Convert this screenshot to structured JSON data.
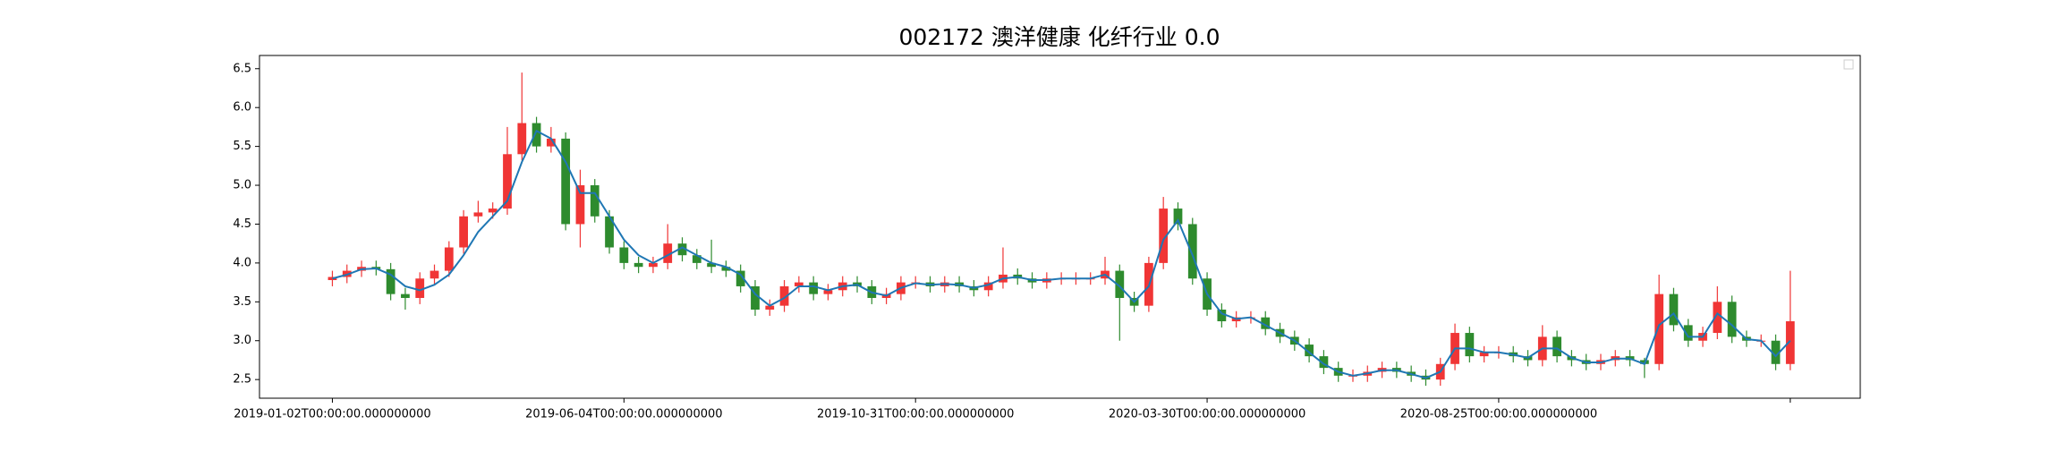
{
  "chart_data": {
    "type": "candlestick",
    "title": "002172 澳洋健康 化纤行业 0.0",
    "x": [
      0,
      5,
      10,
      15,
      20,
      25,
      30,
      35,
      40,
      45,
      50,
      55,
      60,
      65,
      70,
      75,
      80,
      85,
      90,
      95,
      100,
      105,
      110,
      115,
      120,
      125,
      130,
      135,
      140,
      145,
      150,
      155,
      160,
      165,
      170,
      175,
      180,
      185,
      190,
      195,
      200,
      205,
      210,
      215,
      220,
      225,
      230,
      235,
      240,
      245,
      250,
      255,
      260,
      265,
      270,
      275,
      280,
      285,
      290,
      295,
      300,
      305,
      310,
      315,
      320,
      325,
      330,
      335,
      340,
      345,
      350,
      355,
      360,
      365,
      370,
      375,
      380,
      385,
      390,
      395,
      400,
      405,
      410,
      415,
      420,
      425,
      430,
      435,
      440,
      445,
      450,
      455,
      460,
      465,
      470,
      475,
      480,
      485,
      490,
      495,
      500
    ],
    "open": [
      3.78,
      3.82,
      3.9,
      3.95,
      3.92,
      3.6,
      3.55,
      3.8,
      3.9,
      4.2,
      4.6,
      4.65,
      4.7,
      5.4,
      5.8,
      5.5,
      5.6,
      4.5,
      5.0,
      4.6,
      4.2,
      4.0,
      3.95,
      4.0,
      4.25,
      4.1,
      4.0,
      3.95,
      3.9,
      3.7,
      3.4,
      3.45,
      3.7,
      3.75,
      3.6,
      3.65,
      3.75,
      3.7,
      3.55,
      3.6,
      3.75,
      3.75,
      3.7,
      3.75,
      3.7,
      3.65,
      3.75,
      3.85,
      3.8,
      3.75,
      3.8,
      3.8,
      3.8,
      3.8,
      3.9,
      3.55,
      3.45,
      4.0,
      4.7,
      4.5,
      3.8,
      3.4,
      3.25,
      3.3,
      3.3,
      3.15,
      3.05,
      2.95,
      2.8,
      2.65,
      2.55,
      2.55,
      2.6,
      2.65,
      2.6,
      2.55,
      2.5,
      2.7,
      3.1,
      2.8,
      2.85,
      2.85,
      2.8,
      2.75,
      3.05,
      2.8,
      2.75,
      2.7,
      2.75,
      2.8,
      2.75,
      2.7,
      3.6,
      3.2,
      3.0,
      3.1,
      3.5,
      3.05,
      3.0,
      3.0,
      2.7
    ],
    "high": [
      3.9,
      3.98,
      4.03,
      4.03,
      4.0,
      3.68,
      3.88,
      3.98,
      4.28,
      4.68,
      4.8,
      4.78,
      5.75,
      6.45,
      5.88,
      5.75,
      5.68,
      5.2,
      5.08,
      4.68,
      4.28,
      4.08,
      4.08,
      4.5,
      4.33,
      4.18,
      4.3,
      4.03,
      3.98,
      3.78,
      3.53,
      3.78,
      3.83,
      3.83,
      3.73,
      3.83,
      3.83,
      3.78,
      3.68,
      3.83,
      3.83,
      3.83,
      3.83,
      3.83,
      3.78,
      3.83,
      4.2,
      3.93,
      3.88,
      3.88,
      3.88,
      3.88,
      3.88,
      4.08,
      3.98,
      3.63,
      4.08,
      4.85,
      4.78,
      4.58,
      3.88,
      3.48,
      3.38,
      3.38,
      3.38,
      3.23,
      3.13,
      3.03,
      2.88,
      2.73,
      2.63,
      2.68,
      2.73,
      2.73,
      2.68,
      2.63,
      2.78,
      3.22,
      3.18,
      2.93,
      2.93,
      2.93,
      2.88,
      3.2,
      3.13,
      2.88,
      2.83,
      2.83,
      2.88,
      2.88,
      2.78,
      3.85,
      3.68,
      3.28,
      3.18,
      3.7,
      3.58,
      3.13,
      3.08,
      3.08,
      3.9
    ],
    "low": [
      3.7,
      3.74,
      3.82,
      3.84,
      3.52,
      3.4,
      3.47,
      3.72,
      3.82,
      4.12,
      4.52,
      4.57,
      4.62,
      5.32,
      5.42,
      5.42,
      4.42,
      4.2,
      4.52,
      4.12,
      3.92,
      3.87,
      3.87,
      3.92,
      4.02,
      3.92,
      3.87,
      3.82,
      3.62,
      3.32,
      3.32,
      3.37,
      3.62,
      3.52,
      3.52,
      3.57,
      3.62,
      3.47,
      3.47,
      3.52,
      3.67,
      3.62,
      3.62,
      3.62,
      3.57,
      3.57,
      3.67,
      3.72,
      3.67,
      3.67,
      3.72,
      3.72,
      3.72,
      3.72,
      3.0,
      3.37,
      3.37,
      3.92,
      4.42,
      3.72,
      3.32,
      3.17,
      3.17,
      3.22,
      3.07,
      2.97,
      2.87,
      2.72,
      2.57,
      2.47,
      2.47,
      2.47,
      2.52,
      2.52,
      2.47,
      2.42,
      2.42,
      2.62,
      2.72,
      2.72,
      2.77,
      2.72,
      2.67,
      2.67,
      2.72,
      2.67,
      2.62,
      2.62,
      2.67,
      2.67,
      2.52,
      2.62,
      3.12,
      2.92,
      2.92,
      3.02,
      2.97,
      2.92,
      2.92,
      2.62,
      2.62
    ],
    "close": [
      3.82,
      3.9,
      3.95,
      3.92,
      3.6,
      3.55,
      3.8,
      3.9,
      4.2,
      4.6,
      4.65,
      4.7,
      5.4,
      5.8,
      5.5,
      5.6,
      4.5,
      5.0,
      4.6,
      4.2,
      4.0,
      3.95,
      4.0,
      4.25,
      4.1,
      4.0,
      3.95,
      3.9,
      3.7,
      3.4,
      3.45,
      3.7,
      3.75,
      3.6,
      3.65,
      3.75,
      3.7,
      3.55,
      3.6,
      3.75,
      3.75,
      3.7,
      3.75,
      3.7,
      3.65,
      3.75,
      3.85,
      3.8,
      3.75,
      3.8,
      3.8,
      3.8,
      3.8,
      3.9,
      3.55,
      3.45,
      4.0,
      4.7,
      4.5,
      3.8,
      3.4,
      3.25,
      3.3,
      3.3,
      3.15,
      3.05,
      2.95,
      2.8,
      2.65,
      2.55,
      2.55,
      2.6,
      2.65,
      2.6,
      2.55,
      2.5,
      2.7,
      3.1,
      2.8,
      2.85,
      2.85,
      2.8,
      2.75,
      3.05,
      2.8,
      2.75,
      2.7,
      2.75,
      2.8,
      2.75,
      2.7,
      3.6,
      3.2,
      3.0,
      3.1,
      3.5,
      3.05,
      3.0,
      3.0,
      2.7,
      3.25
    ],
    "up_color": "#f03535",
    "down_color": "#2e8b2e",
    "ma": {
      "color": "#1f77b4",
      "values": [
        3.8,
        3.85,
        3.92,
        3.93,
        3.85,
        3.7,
        3.65,
        3.72,
        3.85,
        4.1,
        4.4,
        4.6,
        4.8,
        5.3,
        5.7,
        5.6,
        5.3,
        4.9,
        4.9,
        4.6,
        4.3,
        4.1,
        4.0,
        4.1,
        4.2,
        4.1,
        4.0,
        3.95,
        3.85,
        3.6,
        3.45,
        3.55,
        3.7,
        3.7,
        3.65,
        3.7,
        3.72,
        3.62,
        3.58,
        3.68,
        3.74,
        3.72,
        3.73,
        3.72,
        3.68,
        3.72,
        3.8,
        3.82,
        3.78,
        3.78,
        3.8,
        3.8,
        3.8,
        3.85,
        3.7,
        3.5,
        3.7,
        4.3,
        4.55,
        4.1,
        3.6,
        3.35,
        3.28,
        3.3,
        3.2,
        3.1,
        3.0,
        2.85,
        2.7,
        2.6,
        2.55,
        2.58,
        2.62,
        2.62,
        2.57,
        2.52,
        2.6,
        2.9,
        2.9,
        2.85,
        2.85,
        2.82,
        2.78,
        2.9,
        2.9,
        2.78,
        2.72,
        2.72,
        2.77,
        2.77,
        2.7,
        3.2,
        3.35,
        3.05,
        3.05,
        3.35,
        3.2,
        3.02,
        3.0,
        2.8,
        3.0
      ]
    },
    "xlim": [
      -25,
      524
    ],
    "xticks": [
      {
        "value": 0,
        "label": "2019-01-02T00:00:00.000000000"
      },
      {
        "value": 100,
        "label": "2019-06-04T00:00:00.000000000"
      },
      {
        "value": 200,
        "label": "2019-10-31T00:00:00.000000000"
      },
      {
        "value": 300,
        "label": "2020-03-30T00:00:00.000000000"
      },
      {
        "value": 400,
        "label": "2020-08-25T00:00:00.000000000"
      },
      {
        "value": 500,
        "label": null
      }
    ],
    "ylim": [
      2.26,
      6.67
    ],
    "yticks": [
      2.5,
      {
        "value": 3,
        "label": "3.0"
      },
      3.5,
      {
        "value": 4,
        "label": "4.0"
      },
      4.5,
      {
        "value": 5,
        "label": "5.0"
      },
      5.5,
      {
        "value": 6,
        "label": "6.0"
      },
      6.5
    ],
    "legend": "upper right"
  }
}
